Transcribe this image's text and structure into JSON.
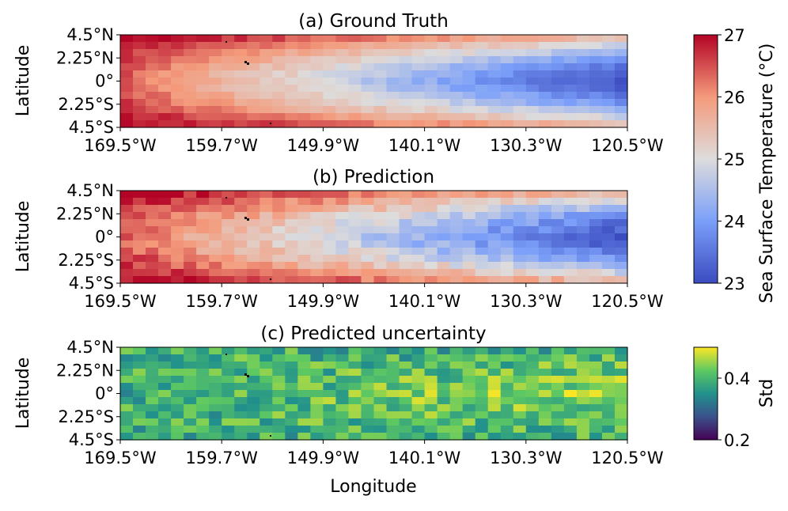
{
  "chart_data": [
    {
      "type": "heatmap",
      "title": "(a) Ground Truth",
      "xlabel": "",
      "ylabel": "Latitude",
      "xticks": [
        "169.5°W",
        "159.7°W",
        "149.9°W",
        "140.1°W",
        "130.3°W",
        "120.5°W"
      ],
      "yticks": [
        "4.5°N",
        "2.25°N",
        "0°",
        "2.25°S",
        "4.5°S"
      ],
      "xlim": [
        -169.5,
        -120.5
      ],
      "ylim": [
        -4.5,
        4.5
      ],
      "colormap": "coolwarm",
      "grid": false,
      "colorbar": {
        "label": "Sea Surface Temperature (°C)",
        "range": [
          23,
          27
        ],
        "ticks": [
          "23",
          "24",
          "25",
          "26",
          "27"
        ]
      }
    },
    {
      "type": "heatmap",
      "title": "(b) Prediction",
      "xlabel": "",
      "ylabel": "Latitude",
      "xticks": [
        "169.5°W",
        "159.7°W",
        "149.9°W",
        "140.1°W",
        "130.3°W",
        "120.5°W"
      ],
      "yticks": [
        "4.5°N",
        "2.25°N",
        "0°",
        "2.25°S",
        "4.5°S"
      ],
      "xlim": [
        -169.5,
        -120.5
      ],
      "ylim": [
        -4.5,
        4.5
      ],
      "colormap": "coolwarm",
      "grid": false,
      "colorbar": {
        "label": "Sea Surface Temperature (°C)",
        "range": [
          23,
          27
        ],
        "ticks": [
          "23",
          "24",
          "25",
          "26",
          "27"
        ]
      }
    },
    {
      "type": "heatmap",
      "title": "(c) Predicted uncertainty",
      "xlabel": "Longitude",
      "ylabel": "Latitude",
      "xticks": [
        "169.5°W",
        "159.7°W",
        "149.9°W",
        "140.1°W",
        "130.3°W",
        "120.5°W"
      ],
      "yticks": [
        "4.5°N",
        "2.25°N",
        "0°",
        "2.25°S",
        "4.5°S"
      ],
      "xlim": [
        -169.5,
        -120.5
      ],
      "ylim": [
        -4.5,
        4.5
      ],
      "colormap": "viridis",
      "grid": false,
      "colorbar": {
        "label": "Std",
        "range": [
          0.2,
          0.5
        ],
        "ticks": [
          "0.2",
          "0.4"
        ]
      }
    }
  ]
}
